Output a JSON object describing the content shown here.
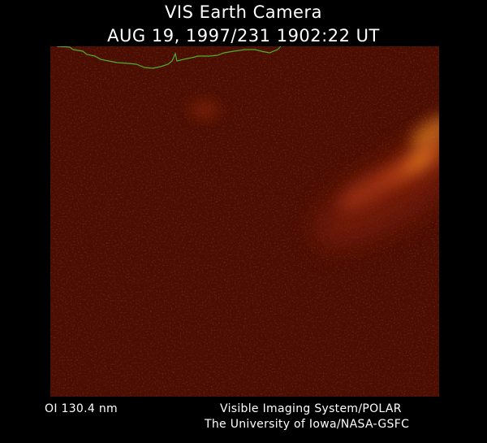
{
  "header": {
    "title": "VIS Earth Camera",
    "timestamp": "AUG 19, 1997/231 1902:22 UT"
  },
  "image": {
    "description_colors": {
      "background": "#4a0d02",
      "aurora_glow": "#e07a1a",
      "limb_line": "#4caf2a"
    }
  },
  "footer": {
    "filter": "OI  130.4 nm",
    "instrument": "Visible Imaging System/POLAR",
    "institution": "The University of Iowa/NASA-GSFC"
  }
}
